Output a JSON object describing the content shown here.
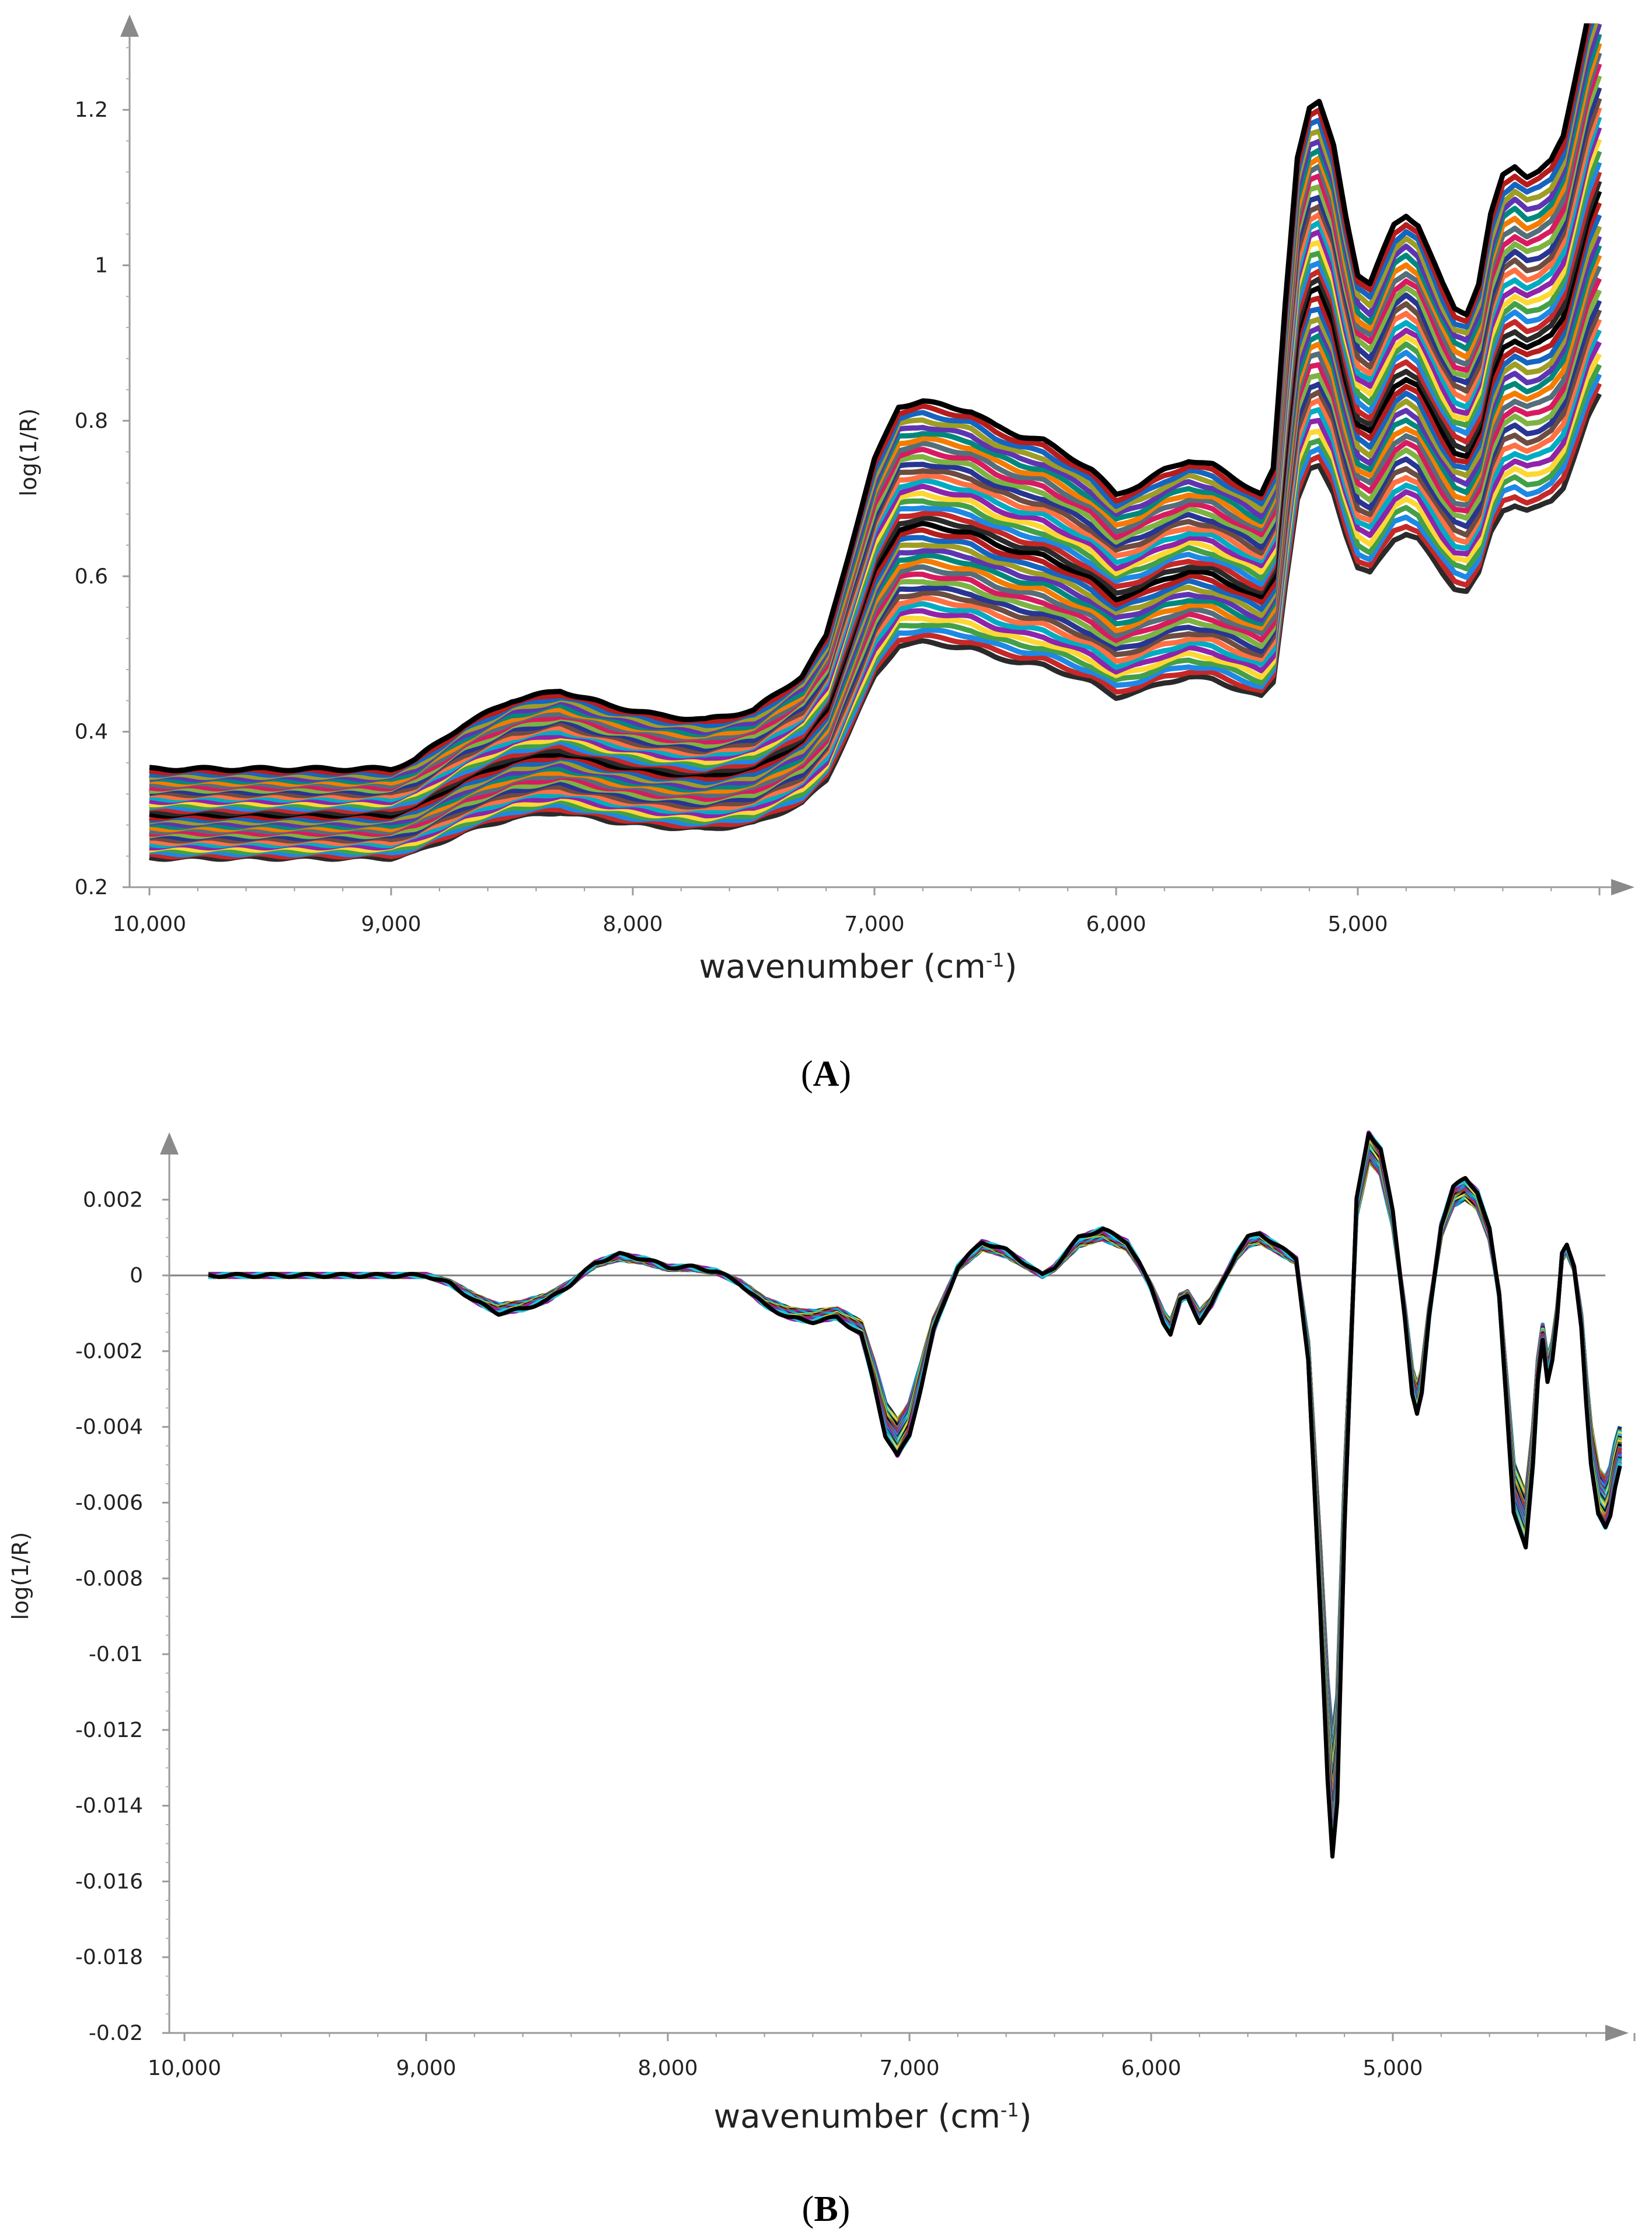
{
  "chart_data": [
    {
      "panel_label": "A",
      "type": "line",
      "xlabel": "wavenumber (cm",
      "xlabel_sup": "-1",
      "xlabel_close": ")",
      "ylabel": "log(1/R)",
      "xlim": [
        10000,
        4000
      ],
      "ylim": [
        0.2,
        1.3
      ],
      "x_ticks": [
        10000,
        9000,
        8000,
        7000,
        6000,
        5000
      ],
      "x_tick_labels": [
        "10,000",
        "9,000",
        "8,000",
        "7,000",
        "6,000",
        "5,000"
      ],
      "y_ticks": [
        0.2,
        0.4,
        0.6,
        0.8,
        1,
        1.2
      ],
      "y_tick_labels": [
        "0.2",
        "0.4",
        "0.6",
        "0.8",
        "1",
        "1.2"
      ],
      "n_spectra": 40,
      "series_colors": [
        "#2a2a2a",
        "#c62828",
        "#1e88e5",
        "#43a047",
        "#fdd835",
        "#8e24aa",
        "#00acc1",
        "#ff7043",
        "#6d4c41",
        "#283593",
        "#7cb342",
        "#d81b60",
        "#546e7a",
        "#f57c00",
        "#00897b",
        "#5e35b1",
        "#9e9d24",
        "#1565c0",
        "#b71c1c",
        "#000000"
      ],
      "mean_spectrum": {
        "x": [
          10000,
          9000,
          8900,
          8700,
          8500,
          8300,
          8100,
          7900,
          7700,
          7500,
          7300,
          7200,
          7100,
          7000,
          6900,
          6800,
          6700,
          6600,
          6500,
          6400,
          6300,
          6200,
          6100,
          6000,
          5900,
          5800,
          5700,
          5600,
          5500,
          5400,
          5350,
          5300,
          5250,
          5200,
          5160,
          5100,
          5050,
          5000,
          4950,
          4900,
          4850,
          4800,
          4750,
          4700,
          4650,
          4600,
          4550,
          4500,
          4450,
          4400,
          4350,
          4300,
          4250,
          4200,
          4150,
          4100,
          4050,
          4000
        ],
        "y": [
          0.295,
          0.295,
          0.305,
          0.34,
          0.365,
          0.375,
          0.36,
          0.35,
          0.345,
          0.355,
          0.39,
          0.43,
          0.52,
          0.61,
          0.665,
          0.67,
          0.665,
          0.66,
          0.645,
          0.635,
          0.63,
          0.615,
          0.6,
          0.575,
          0.585,
          0.6,
          0.61,
          0.605,
          0.59,
          0.575,
          0.6,
          0.77,
          0.92,
          0.97,
          0.975,
          0.93,
          0.86,
          0.8,
          0.79,
          0.82,
          0.85,
          0.86,
          0.85,
          0.82,
          0.79,
          0.765,
          0.76,
          0.79,
          0.86,
          0.9,
          0.91,
          0.9,
          0.905,
          0.915,
          0.94,
          1.0,
          1.06,
          1.1
        ]
      }
    },
    {
      "panel_label": "B",
      "type": "line",
      "xlabel": "wavenumber (cm",
      "xlabel_sup": "-1",
      "xlabel_close": ")",
      "ylabel": "log(1/R)",
      "xlim": [
        10000,
        4000
      ],
      "ylim": [
        -0.02,
        0.0037
      ],
      "x_ticks": [
        10000,
        9000,
        8000,
        7000,
        6000,
        5000
      ],
      "x_tick_labels": [
        "10,000",
        "9,000",
        "8,000",
        "7,000",
        "6,000",
        "5,000"
      ],
      "y_ticks": [
        0.002,
        0,
        -0.002,
        -0.004,
        -0.006,
        -0.008,
        -0.01,
        -0.012,
        -0.014,
        -0.016,
        -0.018,
        -0.02
      ],
      "y_tick_labels": [
        "0.002",
        "0",
        "-0.002",
        "-0.004",
        "-0.006",
        "-0.008",
        "-0.01",
        "-0.012",
        "-0.014",
        "-0.016",
        "-0.018",
        "-0.02"
      ],
      "n_spectra": 40,
      "series_colors": [
        "#1e88e5",
        "#2a2a2a",
        "#7cb342",
        "#c62828",
        "#00acc1",
        "#fdd835",
        "#6d4c41",
        "#8e24aa",
        "#26c6da",
        "#000000"
      ],
      "mean_spectrum": {
        "x": [
          9900,
          9100,
          9000,
          8900,
          8800,
          8700,
          8600,
          8500,
          8400,
          8300,
          8200,
          8100,
          8000,
          7900,
          7800,
          7700,
          7600,
          7500,
          7400,
          7300,
          7200,
          7150,
          7100,
          7050,
          7000,
          6950,
          6900,
          6800,
          6700,
          6600,
          6500,
          6450,
          6400,
          6300,
          6200,
          6100,
          6050,
          6000,
          5950,
          5920,
          5880,
          5850,
          5800,
          5750,
          5700,
          5650,
          5600,
          5550,
          5500,
          5450,
          5400,
          5350,
          5300,
          5270,
          5250,
          5230,
          5200,
          5150,
          5100,
          5050,
          5000,
          4950,
          4920,
          4900,
          4880,
          4850,
          4800,
          4750,
          4700,
          4650,
          4600,
          4560,
          4530,
          4500,
          4450,
          4420,
          4400,
          4380,
          4360,
          4340,
          4320,
          4300,
          4280,
          4250,
          4220,
          4200,
          4180,
          4150,
          4120,
          4100,
          4080,
          4060
        ],
        "y": [
          0,
          0,
          0,
          -0.0002,
          -0.0006,
          -0.0009,
          -0.0008,
          -0.0006,
          -0.0002,
          0.0003,
          0.0005,
          0.0004,
          0.0002,
          0.0002,
          0.0001,
          -0.0002,
          -0.0007,
          -0.001,
          -0.0011,
          -0.001,
          -0.0014,
          -0.0025,
          -0.0038,
          -0.0043,
          -0.0038,
          -0.0026,
          -0.0013,
          0.0002,
          0.0008,
          0.0006,
          0.0002,
          0,
          0.0002,
          0.0009,
          0.0011,
          0.0008,
          0.0003,
          -0.0003,
          -0.0011,
          -0.0014,
          -0.0006,
          -0.0005,
          -0.0011,
          -0.0007,
          -0.0001,
          0.0005,
          0.0009,
          0.001,
          0.0008,
          0.0006,
          0.0004,
          -0.002,
          -0.008,
          -0.012,
          -0.0138,
          -0.0125,
          -0.006,
          0.0018,
          0.0034,
          0.003,
          0.0015,
          -0.001,
          -0.0028,
          -0.0033,
          -0.0028,
          -0.001,
          0.0012,
          0.0021,
          0.0023,
          0.002,
          0.0011,
          -0.0005,
          -0.003,
          -0.0056,
          -0.0065,
          -0.0045,
          -0.0025,
          -0.0015,
          -0.0025,
          -0.002,
          -0.001,
          0.0005,
          0.0007,
          0.0002,
          -0.0012,
          -0.003,
          -0.0045,
          -0.0057,
          -0.006,
          -0.0057,
          -0.005,
          -0.0045
        ]
      }
    }
  ],
  "panel_captions": [
    "A",
    "B"
  ]
}
